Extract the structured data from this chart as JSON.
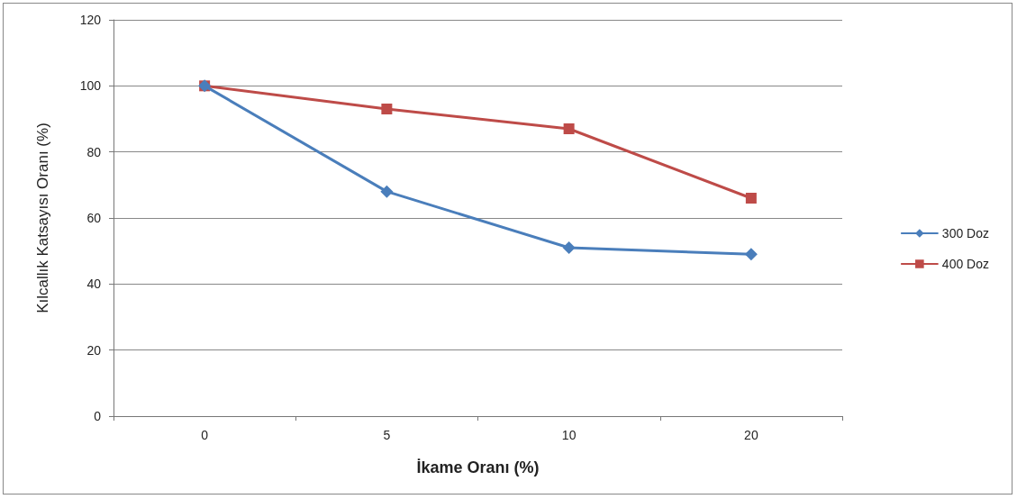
{
  "chart_data": {
    "type": "line",
    "xlabel": "İkame Oranı (%)",
    "ylabel": "Kılcallık Katsayısı Oranı (%)",
    "categories": [
      "0",
      "5",
      "10",
      "20"
    ],
    "series": [
      {
        "name": "300 Doz",
        "color": "#4a7ebb",
        "marker": "diamond",
        "values": [
          100,
          68,
          51,
          49
        ]
      },
      {
        "name": "400 Doz",
        "color": "#be4b48",
        "marker": "square",
        "values": [
          100,
          93,
          87,
          66
        ]
      }
    ],
    "ylim": [
      0,
      120
    ],
    "yticks": [
      0,
      20,
      40,
      60,
      80,
      100,
      120
    ],
    "grid": "y",
    "legend": "right"
  }
}
